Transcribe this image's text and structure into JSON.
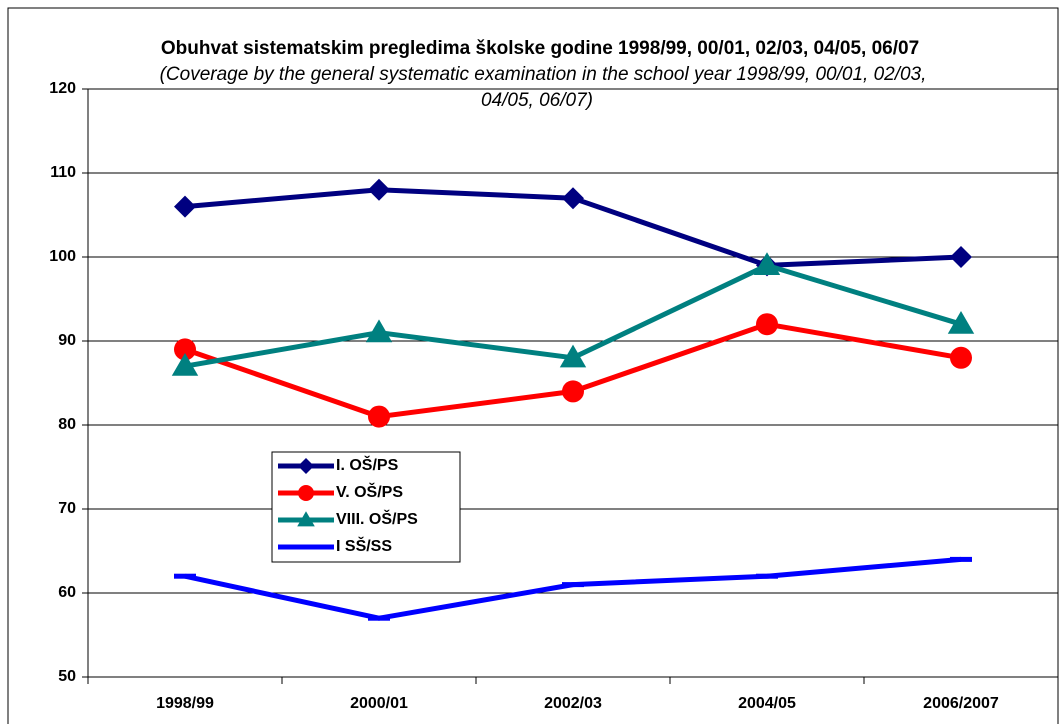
{
  "chart_data": {
    "type": "line",
    "title": "Obuhvat sistematskim pregledima školske godine 1998/99, 00/01, 02/03, 04/05, 06/07",
    "subtitle": "(Coverage by the general systematic examination in the school year 1998/99, 00/01, 02/03, 04/05, 06/07)",
    "categories": [
      "1998/99",
      "2000/01",
      "2002/03",
      "2004/05",
      "2006/2007"
    ],
    "series": [
      {
        "name": "I. OŠ/PS",
        "color": "#000080",
        "marker": "diamond",
        "values": [
          106,
          108,
          107,
          99,
          100
        ]
      },
      {
        "name": "V. OŠ/PS",
        "color": "#ff0000",
        "marker": "circle",
        "values": [
          89,
          81,
          84,
          92,
          88
        ]
      },
      {
        "name": "VIII. OŠ/PS",
        "color": "#008080",
        "marker": "triangle",
        "values": [
          87,
          91,
          88,
          99,
          92
        ]
      },
      {
        "name": "I SŠ/SS",
        "color": "#0000ff",
        "marker": "dash",
        "values": [
          62,
          57,
          61,
          62,
          64
        ]
      }
    ],
    "ylim": [
      50,
      120
    ],
    "yticks": [
      50,
      60,
      70,
      80,
      90,
      100,
      110,
      120
    ],
    "grid": true
  }
}
